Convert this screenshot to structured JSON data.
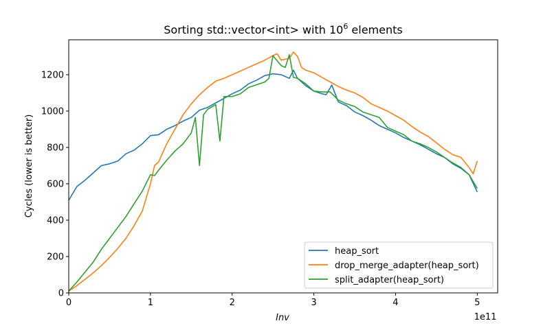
{
  "chart_data": {
    "type": "line",
    "title": "Sorting std::vector<int> with 10",
    "title_superscript": "6",
    "title_suffix": " elements",
    "xlabel": "Inv",
    "ylabel": "Cycles (lower is better)",
    "x_offset_label": "1e11",
    "xlim": [
      0,
      5.25
    ],
    "ylim": [
      0,
      1392
    ],
    "xticks": [
      0,
      1,
      2,
      3,
      4,
      5
    ],
    "xtick_labels": [
      "0",
      "1",
      "2",
      "3",
      "4",
      "5"
    ],
    "yticks": [
      0,
      200,
      400,
      600,
      800,
      1000,
      1200
    ],
    "ytick_labels": [
      "0",
      "200",
      "400",
      "600",
      "800",
      "1000",
      "1200"
    ],
    "grid": false,
    "legend_position": "lower-right",
    "series": [
      {
        "name": "heap_sort",
        "color": "#1f77b4",
        "x": [
          0,
          0.1,
          0.2,
          0.3,
          0.4,
          0.5,
          0.6,
          0.7,
          0.8,
          0.9,
          1.0,
          1.1,
          1.2,
          1.3,
          1.4,
          1.5,
          1.6,
          1.7,
          1.8,
          1.9,
          2.0,
          2.1,
          2.2,
          2.3,
          2.4,
          2.5,
          2.6,
          2.7,
          2.75,
          2.8,
          2.9,
          3.0,
          3.1,
          3.15,
          3.22,
          3.3,
          3.4,
          3.5,
          3.6,
          3.7,
          3.8,
          3.9,
          4.0,
          4.1,
          4.2,
          4.3,
          4.4,
          4.5,
          4.6,
          4.7,
          4.8,
          4.9,
          5.0
        ],
        "values": [
          510,
          585,
          620,
          660,
          700,
          710,
          725,
          765,
          785,
          820,
          865,
          870,
          900,
          920,
          945,
          965,
          1005,
          1020,
          1045,
          1070,
          1095,
          1115,
          1150,
          1170,
          1195,
          1205,
          1200,
          1180,
          1225,
          1180,
          1140,
          1110,
          1095,
          1090,
          1143,
          1050,
          1030,
          995,
          975,
          950,
          920,
          900,
          880,
          855,
          835,
          815,
          790,
          765,
          745,
          710,
          685,
          650,
          555
        ]
      },
      {
        "name": "drop_merge_adapter(heap_sort)",
        "color": "#ff7f0e",
        "x": [
          0,
          0.1,
          0.2,
          0.3,
          0.4,
          0.5,
          0.6,
          0.7,
          0.8,
          0.9,
          1.0,
          1.05,
          1.1,
          1.2,
          1.3,
          1.4,
          1.5,
          1.6,
          1.7,
          1.8,
          1.9,
          2.0,
          2.1,
          2.2,
          2.3,
          2.4,
          2.5,
          2.55,
          2.6,
          2.7,
          2.75,
          2.8,
          2.85,
          2.9,
          3.0,
          3.1,
          3.2,
          3.3,
          3.4,
          3.5,
          3.6,
          3.7,
          3.8,
          3.9,
          4.0,
          4.1,
          4.2,
          4.3,
          4.4,
          4.5,
          4.6,
          4.7,
          4.8,
          4.9,
          4.95,
          5.0
        ],
        "values": [
          10,
          40,
          75,
          110,
          150,
          195,
          245,
          300,
          370,
          450,
          600,
          700,
          720,
          820,
          900,
          980,
          1040,
          1090,
          1130,
          1165,
          1180,
          1200,
          1220,
          1240,
          1260,
          1280,
          1305,
          1315,
          1280,
          1290,
          1325,
          1300,
          1240,
          1225,
          1210,
          1185,
          1160,
          1135,
          1115,
          1100,
          1075,
          1040,
          1020,
          1000,
          975,
          950,
          915,
          885,
          860,
          825,
          790,
          760,
          745,
          690,
          655,
          725
        ]
      },
      {
        "name": "split_adapter(heap_sort)",
        "color": "#2ca02c",
        "x": [
          0,
          0.1,
          0.2,
          0.3,
          0.4,
          0.5,
          0.6,
          0.7,
          0.8,
          0.9,
          1.0,
          1.05,
          1.1,
          1.2,
          1.3,
          1.4,
          1.5,
          1.55,
          1.6,
          1.65,
          1.7,
          1.8,
          1.85,
          1.9,
          2.0,
          2.1,
          2.2,
          2.3,
          2.4,
          2.45,
          2.5,
          2.6,
          2.65,
          2.7,
          2.75,
          2.8,
          2.9,
          3.0,
          3.1,
          3.2,
          3.3,
          3.4,
          3.5,
          3.6,
          3.7,
          3.8,
          3.9,
          4.0,
          4.1,
          4.2,
          4.3,
          4.4,
          4.5,
          4.6,
          4.7,
          4.8,
          4.9,
          5.0
        ],
        "values": [
          10,
          60,
          115,
          170,
          240,
          300,
          360,
          420,
          490,
          560,
          650,
          645,
          675,
          730,
          780,
          820,
          880,
          965,
          700,
          980,
          1010,
          1035,
          835,
          1080,
          1080,
          1095,
          1130,
          1145,
          1160,
          1180,
          1305,
          1250,
          1240,
          1310,
          1185,
          1180,
          1150,
          1110,
          1105,
          1105,
          1060,
          1040,
          1025,
          995,
          980,
          965,
          910,
          890,
          870,
          835,
          820,
          800,
          775,
          745,
          715,
          690,
          650,
          575
        ]
      }
    ]
  }
}
